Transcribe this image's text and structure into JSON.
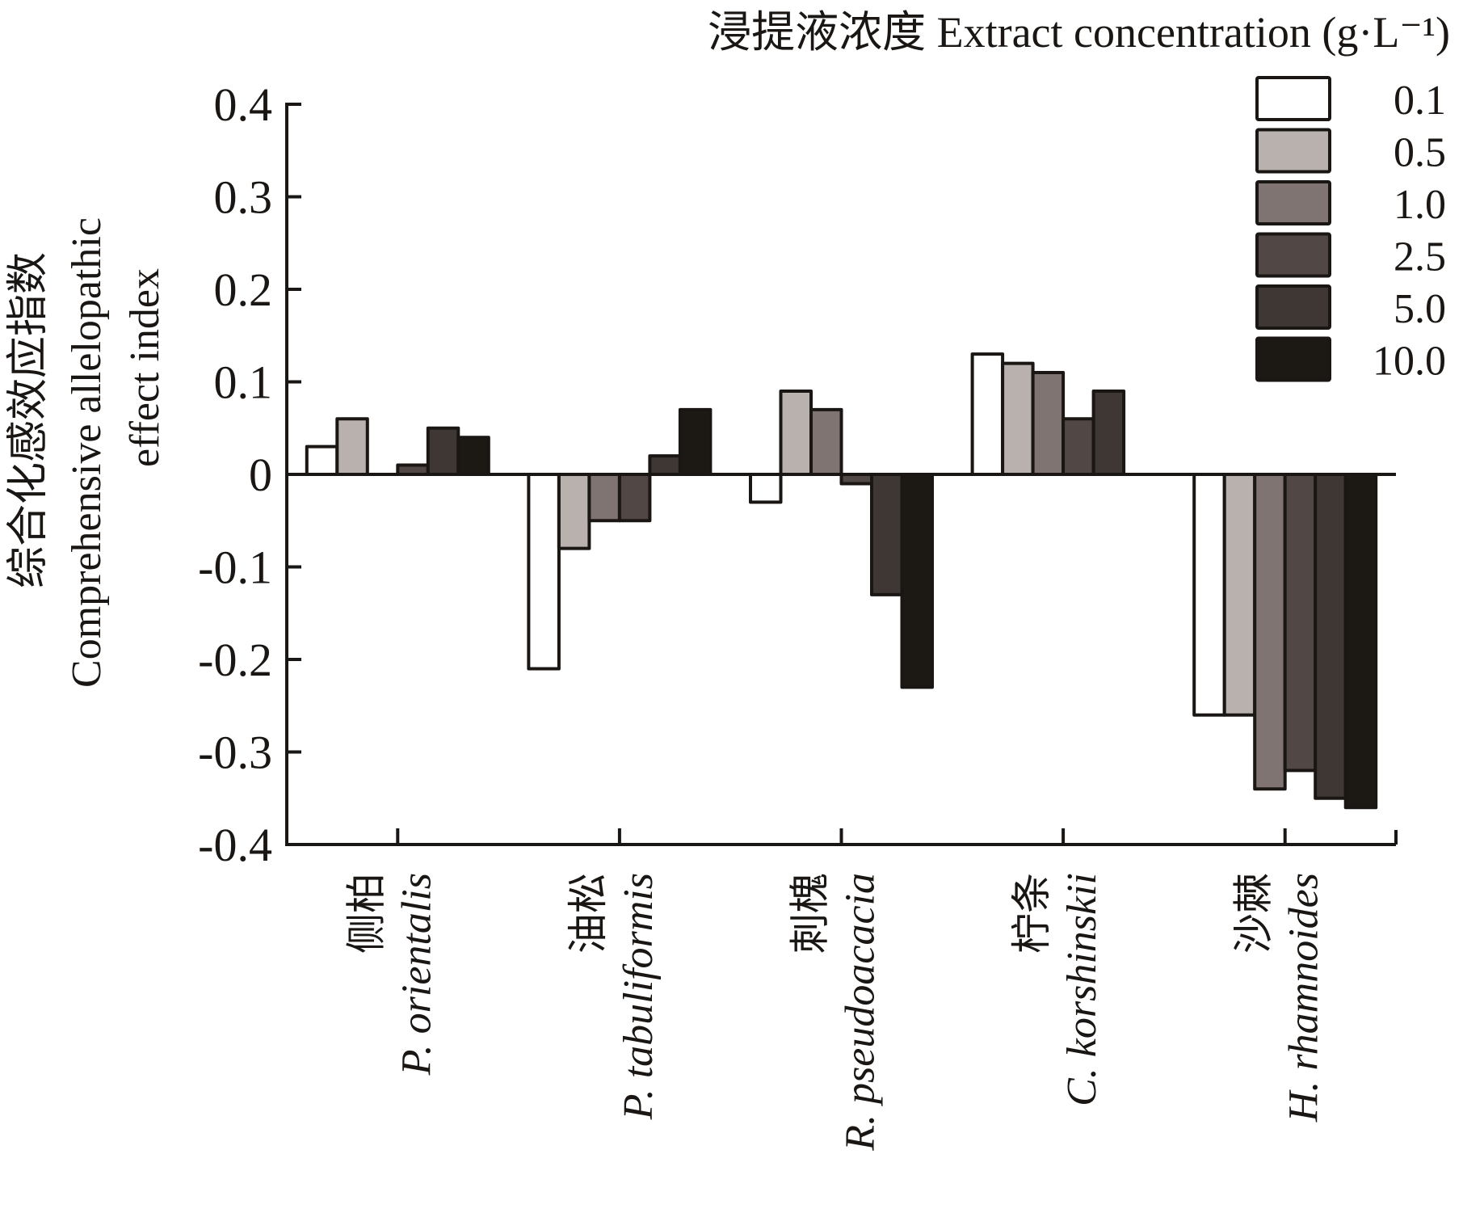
{
  "chart_data": {
    "type": "bar",
    "title": "浸提液浓度 Extract concentration (g·L⁻¹)",
    "legend_title": "浸提液浓度 Extract concentration (g·L⁻¹)",
    "ylabel_zh": "综合化感效应指数",
    "ylabel_en_line1": "Comprehensive allelopathic",
    "ylabel_en_line2": "effect index",
    "ylabel": "综合化感效应指数 Comprehensive allelopathic effect index",
    "xlabel": "",
    "ylim": [
      -0.4,
      0.4
    ],
    "yticks": [
      0.4,
      0.3,
      0.2,
      0.1,
      0,
      -0.1,
      -0.2,
      -0.3,
      -0.4
    ],
    "ytick_labels": [
      "0.4",
      "0.3",
      "0.2",
      "0.1",
      "0",
      "-0.1",
      "-0.2",
      "-0.3",
      "-0.4"
    ],
    "grid": false,
    "legend_position": "top-right",
    "categories": [
      {
        "zh": "侧柏",
        "en": "P. orientalis"
      },
      {
        "zh": "油松",
        "en": "P. tabuliformis"
      },
      {
        "zh": "刺槐",
        "en": "R. pseudoacacia"
      },
      {
        "zh": "柠条",
        "en": "C. korshinskii"
      },
      {
        "zh": "沙棘",
        "en": "H. rhamnoides"
      }
    ],
    "series": [
      {
        "name": "0.1",
        "color": "#ffffff",
        "values": [
          0.03,
          -0.21,
          -0.03,
          0.13,
          -0.26
        ]
      },
      {
        "name": "0.5",
        "color": "#b9b1ae",
        "values": [
          0.06,
          -0.08,
          0.09,
          0.12,
          -0.26
        ]
      },
      {
        "name": "1.0",
        "color": "#7f7471",
        "values": [
          0.0,
          -0.05,
          0.07,
          0.11,
          -0.34
        ]
      },
      {
        "name": "2.5",
        "color": "#514845",
        "values": [
          0.01,
          -0.05,
          -0.01,
          0.06,
          -0.32
        ]
      },
      {
        "name": "5.0",
        "color": "#3f3734",
        "values": [
          0.05,
          0.02,
          -0.13,
          0.09,
          -0.35
        ]
      },
      {
        "name": "10.0",
        "color": "#1c1814",
        "values": [
          0.04,
          0.07,
          -0.23,
          0.0,
          -0.36
        ]
      }
    ]
  },
  "colors": {
    "axis": "#1a1613",
    "bar_stroke": "#1a1613",
    "background": "#ffffff"
  }
}
